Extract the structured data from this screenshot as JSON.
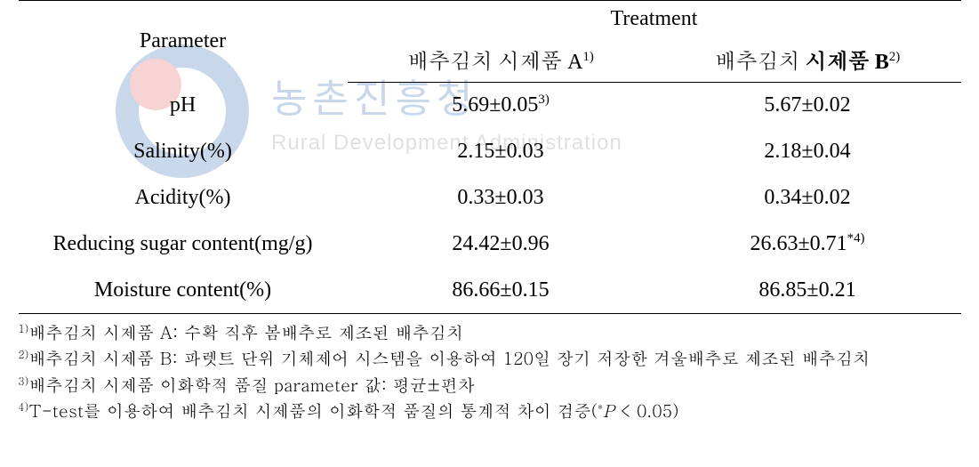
{
  "watermark": {
    "korean": "농촌진흥청",
    "english": "Rural Development Administration",
    "outer_ring_color": "#0b4da2",
    "inner_dot_color": "#e03a3e"
  },
  "table": {
    "header": {
      "parameter": "Parameter",
      "treatment": "Treatment",
      "colA_prefix": "배추김치 시제품 A",
      "colA_sup": "1)",
      "colB_prefix": "배추김치 ",
      "colB_bold": "시제품 B",
      "colB_sup": "2)"
    },
    "rows": [
      {
        "param": "pH",
        "a": "5.69±0.05",
        "a_sup": "3)",
        "b": "5.67±0.02",
        "b_sup": ""
      },
      {
        "param": "Salinity(%)",
        "a": "2.15±0.03",
        "a_sup": "",
        "b": "2.18±0.04",
        "b_sup": ""
      },
      {
        "param": "Acidity(%)",
        "a": "0.33±0.03",
        "a_sup": "",
        "b": "0.34±0.02",
        "b_sup": ""
      },
      {
        "param": "Reducing sugar content(mg/g)",
        "a": "24.42±0.96",
        "a_sup": "",
        "b": "26.63±0.71",
        "b_sup": "*4)"
      },
      {
        "param": "Moisture content(%)",
        "a": "86.66±0.15",
        "a_sup": "",
        "b": "86.85±0.21",
        "b_sup": ""
      }
    ]
  },
  "footnotes": {
    "f1_sup": "1)",
    "f1": "배추김치 시제품 A: 수확 직후 봄배추로 제조된 배추김치",
    "f2_sup": "2)",
    "f2": "배추김치 시제품 B: 파렛트 단위 기체제어 시스템을 이용하여 120일 장기 저장한 겨울배추로 제조된 배추김치",
    "f3_sup": "3)",
    "f3": "배추김치 시제품 이화학적 품질 parameter 값: 평균±편차",
    "f4_sup": "4)",
    "f4_a": "T-test를 이용하여 배추김치 시제품의 이화학적 품질의 통계적 차이 검증(",
    "f4_star": "*",
    "f4_P": "P",
    "f4_b": " < 0.05)"
  }
}
